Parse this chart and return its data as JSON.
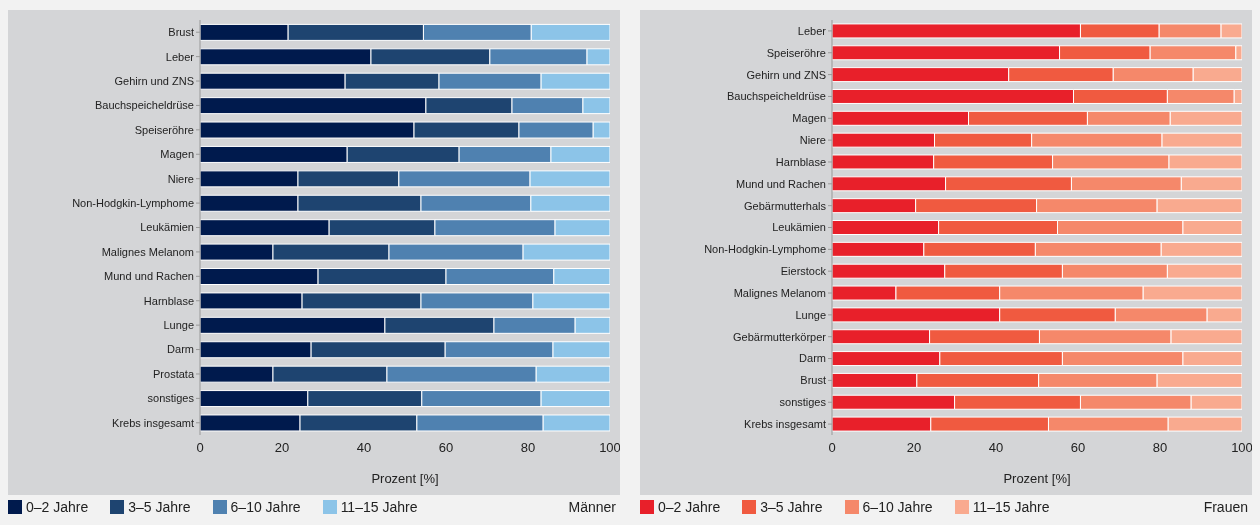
{
  "chart_data": [
    {
      "type": "bar",
      "orientation": "horizontal",
      "stacked": true,
      "xlabel": "Prozent [%]",
      "xlim": [
        0,
        100
      ],
      "xticks": [
        0,
        20,
        40,
        60,
        80,
        100
      ],
      "legend": "bottom",
      "legend_title": "Männer",
      "categories": [
        "Brust",
        "Leber",
        "Gehirn und ZNS",
        "Bauchspeicheldrüse",
        "Speiseröhre",
        "Magen",
        "Niere",
        "Non-Hodgkin-Lymphome",
        "Leukämien",
        "Malignes Melanom",
        "Mund und Rachen",
        "Harnblase",
        "Lunge",
        "Darm",
        "Prostata",
        "sonstiges",
        "Krebs insgesamt"
      ],
      "series": [
        {
          "name": "0–2 Jahre",
          "color": "#001a4d",
          "values": [
            21.5,
            41.7,
            35.4,
            55.1,
            52.2,
            35.9,
            23.9,
            23.9,
            31.5,
            17.8,
            28.8,
            24.9,
            45.1,
            27.1,
            17.8,
            26.3,
            24.4
          ]
        },
        {
          "name": "3–5 Jahre",
          "color": "#1e4470",
          "values": [
            33,
            29,
            22.9,
            21,
            25.6,
            27.3,
            24.6,
            30,
            25.8,
            28.3,
            31.2,
            29,
            26.6,
            32.7,
            27.8,
            27.8,
            28.5
          ]
        },
        {
          "name": "6–10 Jahre",
          "color": "#4f81b0",
          "values": [
            26.3,
            23.7,
            24.9,
            17.3,
            18.1,
            22.4,
            32,
            26.8,
            29.3,
            32.7,
            26.3,
            27.3,
            19.8,
            26.3,
            36.4,
            29.1,
            30.8
          ]
        },
        {
          "name": "11–15 Jahre",
          "color": "#8cc4e8",
          "values": [
            19.2,
            5.6,
            16.8,
            6.6,
            4.1,
            14.4,
            19.5,
            19.3,
            13.4,
            21.2,
            13.7,
            18.8,
            8.5,
            13.9,
            18,
            16.8,
            16.3
          ]
        }
      ]
    },
    {
      "type": "bar",
      "orientation": "horizontal",
      "stacked": true,
      "xlabel": "Prozent [%]",
      "xlim": [
        0,
        100
      ],
      "xticks": [
        0,
        20,
        40,
        60,
        80,
        100
      ],
      "legend": "bottom",
      "legend_title": "Frauen",
      "categories": [
        "Leber",
        "Speiseröhre",
        "Gehirn und ZNS",
        "Bauchspeicheldrüse",
        "Magen",
        "Niere",
        "Harnblase",
        "Mund und Rachen",
        "Gebärmutterhals",
        "Leukämien",
        "Non-Hodgkin-Lymphome",
        "Eierstock",
        "Malignes Melanom",
        "Lunge",
        "Gebärmutterkörper",
        "Darm",
        "Brust",
        "sonstiges",
        "Krebs insgesamt"
      ],
      "series": [
        {
          "name": "0–2 Jahre",
          "color": "#e8202a",
          "values": [
            60.6,
            55.5,
            43.1,
            58.9,
            33.3,
            25,
            24.8,
            27.7,
            20.4,
            26,
            22.4,
            27.5,
            15.6,
            40.9,
            23.8,
            26.3,
            20.7,
            29.9,
            24.1
          ]
        },
        {
          "name": "3–5 Jahre",
          "color": "#f05a40",
          "values": [
            19.2,
            22.1,
            25.5,
            22.9,
            29,
            23.7,
            29,
            30.7,
            29.5,
            29,
            27.2,
            28.7,
            25.3,
            28.2,
            26.8,
            29.9,
            29.7,
            30.7,
            28.7
          ]
        },
        {
          "name": "6–10 Jahre",
          "color": "#f5886a",
          "values": [
            15.1,
            20.9,
            19.5,
            16.3,
            20.2,
            31.8,
            28.4,
            26.8,
            29.4,
            30.6,
            30.7,
            25.6,
            35,
            22.4,
            32.1,
            29.4,
            28.9,
            27,
            29.2
          ]
        },
        {
          "name": "11–15 Jahre",
          "color": "#f9aa8f",
          "values": [
            5.1,
            1.5,
            11.9,
            1.9,
            17.5,
            19.5,
            17.8,
            14.8,
            20.7,
            14.4,
            19.7,
            18.2,
            24.1,
            8.5,
            17.3,
            14.4,
            20.7,
            12.4,
            18
          ]
        }
      ]
    }
  ]
}
